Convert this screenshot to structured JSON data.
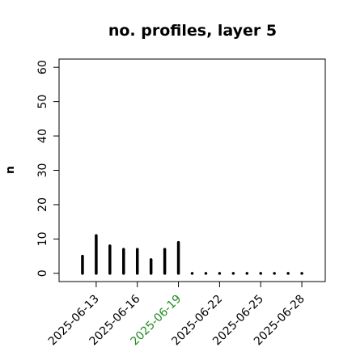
{
  "chart_data": {
    "type": "histlike",
    "title": "no. profiles, layer 5",
    "ylabel": "n",
    "x": [
      "2025-06-12",
      "2025-06-13",
      "2025-06-14",
      "2025-06-15",
      "2025-06-16",
      "2025-06-17",
      "2025-06-18",
      "2025-06-19",
      "2025-06-20",
      "2025-06-21",
      "2025-06-22",
      "2025-06-23",
      "2025-06-24",
      "2025-06-25",
      "2025-06-26",
      "2025-06-27",
      "2025-06-28"
    ],
    "values": [
      5,
      11,
      8,
      7,
      7,
      4,
      7,
      9,
      0,
      0,
      0,
      0,
      0,
      0,
      0,
      0,
      0
    ],
    "color": "#000000",
    "xlim": [
      "2025-06-10T07:00Z",
      "2025-06-29T17:00Z"
    ],
    "xticks": [
      "2025-06-13",
      "2025-06-16",
      "2025-06-19",
      "2025-06-22",
      "2025-06-25",
      "2025-06-28"
    ],
    "xtick_colors": [
      "#000000",
      "#000000",
      "#228b22",
      "#000000",
      "#000000",
      "#000000"
    ],
    "ylim": [
      -2.4,
      62.4
    ],
    "yticks": [
      0,
      10,
      20,
      30,
      40,
      50,
      60
    ]
  }
}
